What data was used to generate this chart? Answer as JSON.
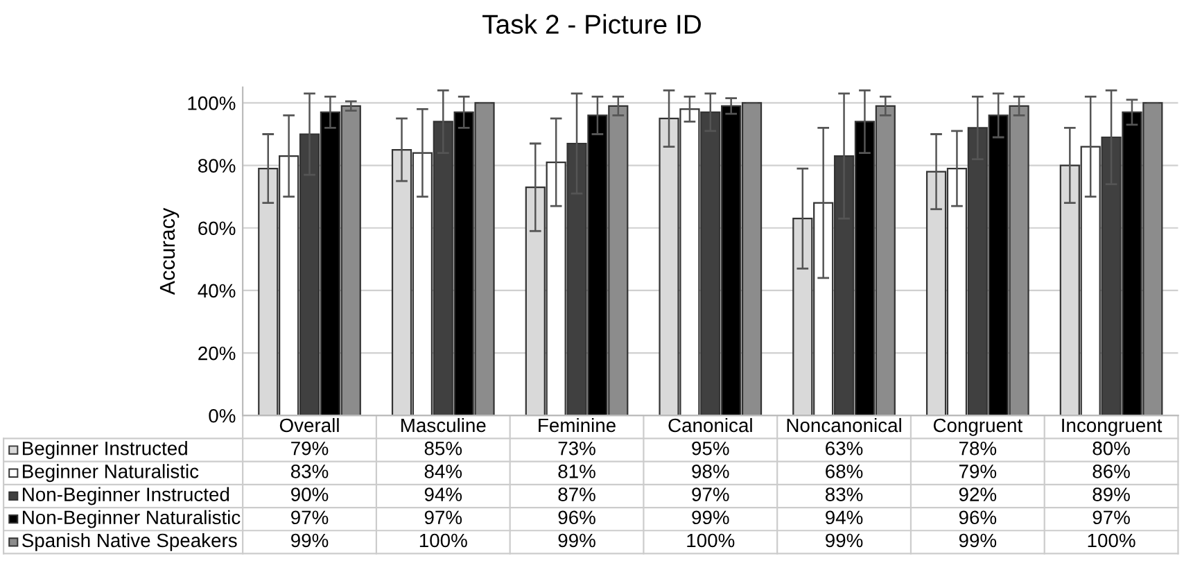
{
  "chart_data": {
    "type": "bar",
    "title": "Task 2 - Picture ID",
    "ylabel": "Accuracy",
    "categories": [
      "Overall",
      "Masculine",
      "Feminine",
      "Canonical",
      "Noncanonical",
      "Congruent",
      "Incongruent"
    ],
    "series": [
      {
        "name": "Beginner Instructed",
        "color": "#d9d9d9",
        "values": [
          79,
          85,
          73,
          95,
          63,
          78,
          80
        ],
        "errors": [
          11,
          10,
          14,
          9,
          16,
          12,
          12
        ],
        "value_labels": [
          "79%",
          "85%",
          "73%",
          "95%",
          "63%",
          "78%",
          "80%"
        ]
      },
      {
        "name": "Beginner Naturalistic",
        "color": "#ffffff",
        "values": [
          83,
          84,
          81,
          98,
          68,
          79,
          86
        ],
        "errors": [
          13,
          14,
          14,
          4,
          24,
          12,
          16
        ],
        "value_labels": [
          "83%",
          "84%",
          "81%",
          "98%",
          "68%",
          "79%",
          "86%"
        ]
      },
      {
        "name": "Non-Beginner Instructed",
        "color": "#404040",
        "values": [
          90,
          94,
          87,
          97,
          83,
          92,
          89
        ],
        "errors": [
          13,
          10,
          16,
          6,
          20,
          10,
          15
        ],
        "value_labels": [
          "90%",
          "94%",
          "87%",
          "97%",
          "83%",
          "92%",
          "89%"
        ]
      },
      {
        "name": "Non-Beginner Naturalistic",
        "color": "#000000",
        "values": [
          97,
          97,
          96,
          99,
          94,
          96,
          97
        ],
        "errors": [
          5,
          5,
          6,
          2.5,
          10,
          7,
          4
        ],
        "value_labels": [
          "97%",
          "97%",
          "96%",
          "99%",
          "94%",
          "96%",
          "97%"
        ]
      },
      {
        "name": "Spanish Native Speakers",
        "color": "#8c8c8c",
        "values": [
          99,
          100,
          99,
          100,
          99,
          99,
          100
        ],
        "errors": [
          1.5,
          0,
          3,
          0,
          3,
          3,
          0
        ],
        "value_labels": [
          "99%",
          "100%",
          "99%",
          "100%",
          "99%",
          "99%",
          "100%"
        ]
      }
    ],
    "ylim": [
      0,
      105
    ],
    "yticks": [
      {
        "value": 0,
        "label": "0%"
      },
      {
        "value": 20,
        "label": "20%"
      },
      {
        "value": 40,
        "label": "40%"
      },
      {
        "value": 60,
        "label": "60%"
      },
      {
        "value": 80,
        "label": "80%"
      },
      {
        "value": 100,
        "label": "100%"
      }
    ],
    "grid": "y",
    "legend": "bottom"
  }
}
